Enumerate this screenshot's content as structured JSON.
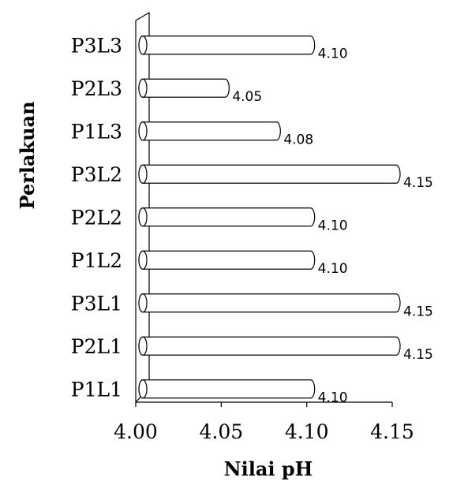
{
  "chart_data": {
    "type": "bar",
    "orientation": "horizontal",
    "style": "3d-cylinder",
    "categories": [
      "P1L1",
      "P2L1",
      "P3L1",
      "P1L2",
      "P2L2",
      "P3L2",
      "P1L3",
      "P2L3",
      "P3L3"
    ],
    "values": [
      4.1,
      4.15,
      4.15,
      4.1,
      4.1,
      4.15,
      4.08,
      4.05,
      4.1
    ],
    "data_labels": [
      "4.10",
      "4.15",
      "4.15",
      "4.10",
      "4.10",
      "4.15",
      "4.08",
      "4.05",
      "4.10"
    ],
    "xlabel": "Nilai pH",
    "ylabel": "Perlakuan",
    "xlim": [
      4.0,
      4.15
    ],
    "x_ticks": [
      "4.00",
      "4.05",
      "4.10",
      "4.15"
    ],
    "grid": false,
    "legend": "none",
    "colors": {
      "bar_fill": "#ffffff",
      "bar_stroke": "#000000",
      "axis": "#000000"
    }
  }
}
